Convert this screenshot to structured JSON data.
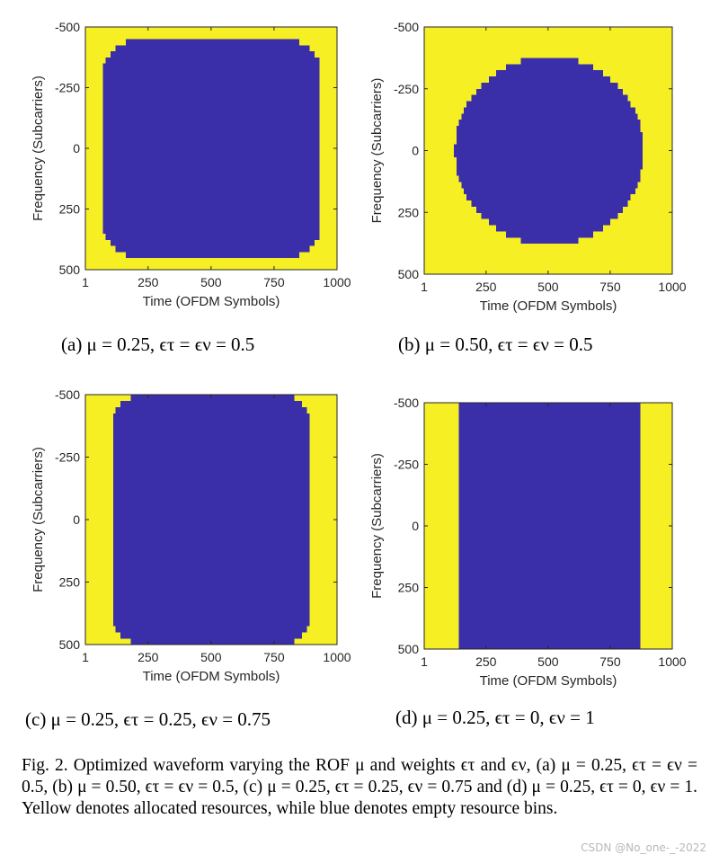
{
  "colors": {
    "allocated": "#f5ef24",
    "empty": "#3a2fa8",
    "frame": "#262626"
  },
  "chart_data": [
    {
      "type": "heatmap",
      "xlabel": "Time (OFDM Symbols)",
      "ylabel": "Frequency (Subcarriers)",
      "xticks": [
        "1",
        "250",
        "500",
        "750",
        "1000"
      ],
      "yticks": [
        "-500",
        "-250",
        "0",
        "250",
        "500"
      ],
      "xlim": [
        1,
        1000
      ],
      "ylim": [
        -500,
        500
      ],
      "y_reversed": true,
      "shape": "rounded-rect",
      "x_range": [
        70,
        930
      ],
      "y_range": [
        -440,
        440
      ],
      "corner": 150
    },
    {
      "type": "heatmap",
      "xlabel": "Time (OFDM Symbols)",
      "ylabel": "Frequency (Subcarriers)",
      "xticks": [
        "1",
        "250",
        "500",
        "750",
        "1000"
      ],
      "yticks": [
        "-500",
        "-250",
        "0",
        "250",
        "500"
      ],
      "xlim": [
        1,
        1000
      ],
      "ylim": [
        -500,
        500
      ],
      "y_reversed": true,
      "shape": "ellipse",
      "center": [
        500,
        0
      ],
      "radius_x": 380,
      "radius_y": 380,
      "flat_top": 0.3
    },
    {
      "type": "heatmap",
      "xlabel": "Time (OFDM Symbols)",
      "ylabel": "Frequency (Subcarriers)",
      "xticks": [
        "1",
        "250",
        "500",
        "750",
        "1000"
      ],
      "yticks": [
        "-500",
        "-250",
        "0",
        "250",
        "500"
      ],
      "xlim": [
        1,
        1000
      ],
      "ylim": [
        -500,
        500
      ],
      "y_reversed": true,
      "shape": "rounded-rect",
      "x_range": [
        110,
        890
      ],
      "y_range": [
        -490,
        490
      ],
      "corner": 120
    },
    {
      "type": "heatmap",
      "xlabel": "Time (OFDM Symbols)",
      "ylabel": "Frequency (Subcarriers)",
      "xticks": [
        "1",
        "250",
        "500",
        "750",
        "1000"
      ],
      "yticks": [
        "-500",
        "-250",
        "0",
        "250",
        "500"
      ],
      "xlim": [
        1,
        1000
      ],
      "ylim": [
        -500,
        500
      ],
      "y_reversed": true,
      "shape": "rect",
      "x_range": [
        135,
        870
      ],
      "y_range": [
        -500,
        500
      ]
    }
  ],
  "subcaptions": [
    "(a) μ = 0.25, ϵτ = ϵν = 0.5",
    "(b) μ = 0.50, ϵτ = ϵν = 0.5",
    "(c) μ = 0.25, ϵτ = 0.25, ϵν = 0.75",
    "(d) μ = 0.25, ϵτ = 0, ϵν = 1"
  ],
  "figure_caption": "Fig. 2.   Optimized waveform varying the ROF μ and weights ϵτ and ϵν, (a) μ = 0.25, ϵτ = ϵν = 0.5, (b) μ = 0.50, ϵτ = ϵν = 0.5, (c) μ = 0.25, ϵτ = 0.25, ϵν = 0.75 and (d) μ = 0.25, ϵτ = 0, ϵν = 1. Yellow denotes allocated resources, while blue denotes empty resource bins.",
  "watermark": "CSDN @No_one-_-2022"
}
